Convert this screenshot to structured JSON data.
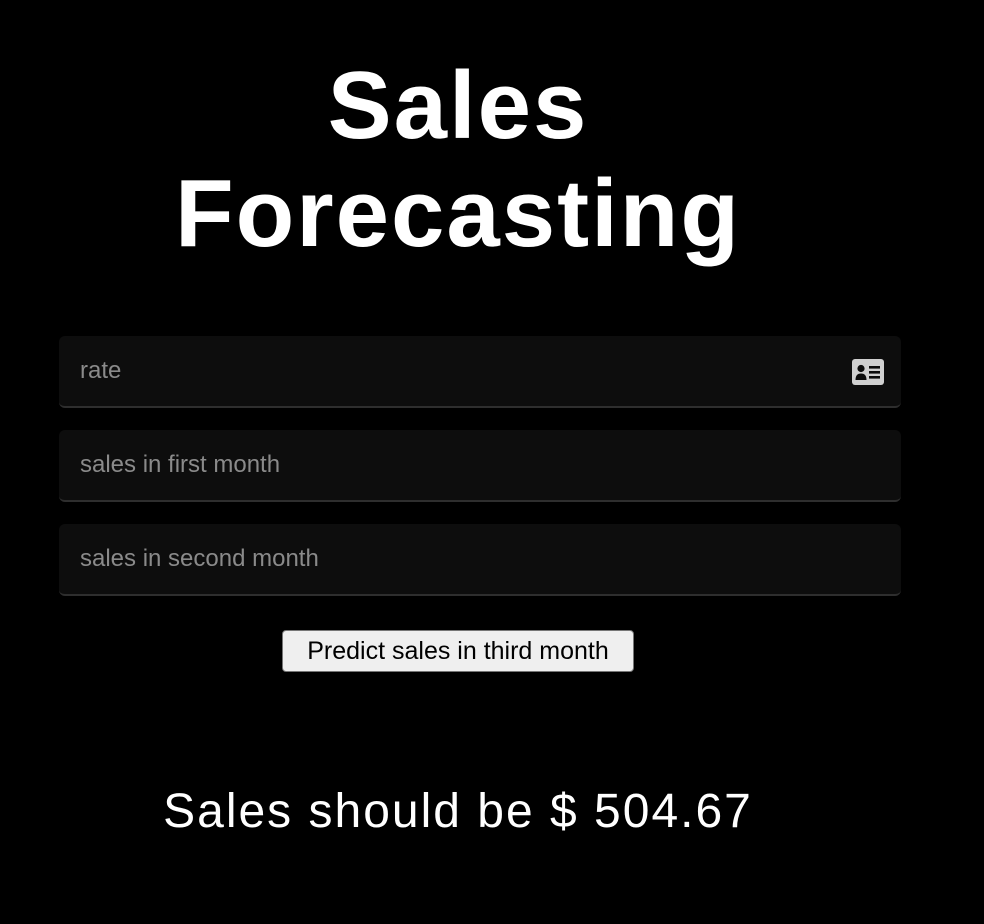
{
  "page": {
    "title_line1": "Sales",
    "title_line2": "Forecasting"
  },
  "form": {
    "rate": {
      "placeholder": "rate",
      "value": ""
    },
    "first_month": {
      "placeholder": "sales in first month",
      "value": ""
    },
    "second_month": {
      "placeholder": "sales in second month",
      "value": ""
    },
    "autofill_icon": "contact-card-icon",
    "submit_label": "Predict sales in third month"
  },
  "result": {
    "text": "Sales should be $ 504.67"
  },
  "colors": {
    "background": "#000000",
    "field_background": "#0d0d0d",
    "text": "#ffffff",
    "placeholder": "#8a8a8a",
    "button_background": "#efefef"
  }
}
